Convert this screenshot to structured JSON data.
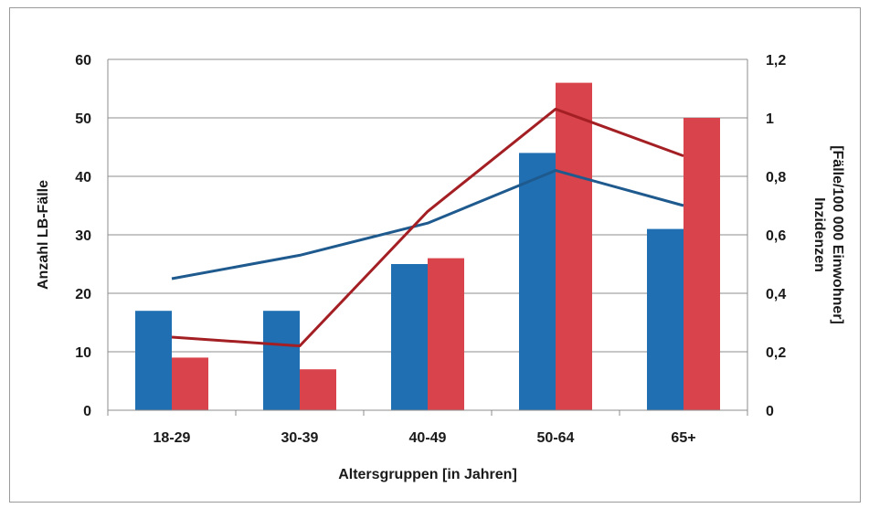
{
  "chart_data": {
    "type": "bar",
    "categories": [
      "18-29",
      "30-39",
      "40-49",
      "50-64",
      "65+"
    ],
    "series": [
      {
        "values": [
          17,
          17,
          25,
          44,
          31
        ],
        "color": "#1F6FB2",
        "kind": "bar",
        "axis": "left"
      },
      {
        "values": [
          9,
          7,
          26,
          56,
          50
        ],
        "color": "#D9434B",
        "kind": "bar",
        "axis": "left"
      },
      {
        "values": [
          0.45,
          0.53,
          0.64,
          0.82,
          0.7
        ],
        "color": "#1F5A8E",
        "kind": "line",
        "axis": "right"
      },
      {
        "values": [
          0.25,
          0.22,
          0.68,
          1.03,
          0.87
        ],
        "color": "#A31F24",
        "kind": "line",
        "axis": "right"
      }
    ],
    "xlabel": "Altersgruppen [in Jahren]",
    "ylabel": "Anzahl LB-Fälle",
    "y2label_line1": "Inzidenzen",
    "y2label_line2": "[Fälle/100 000 Einwohner]",
    "ylim": [
      0,
      60
    ],
    "y2lim": [
      0,
      1.2
    ],
    "yticks": [
      "0",
      "10",
      "20",
      "30",
      "40",
      "50",
      "60"
    ],
    "y2ticks": [
      "0",
      "0,2",
      "0,4",
      "0,6",
      "0,8",
      "1",
      "1,2"
    ],
    "grid": true
  }
}
